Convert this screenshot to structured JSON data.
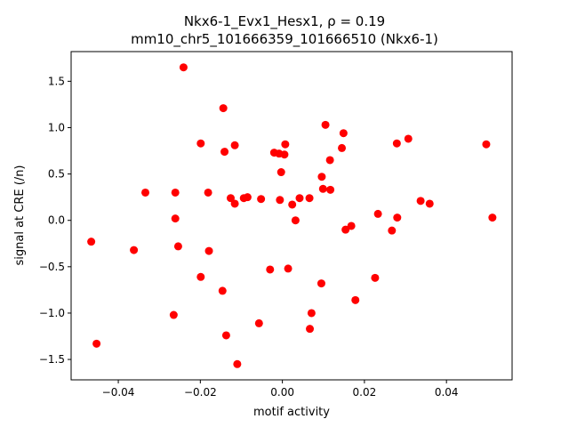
{
  "chart_data": {
    "type": "scatter",
    "title_line1": "Nkx6-1_Evx1_Hesx1, ρ = 0.19",
    "title_line2": "mm10_chr5_101666359_101666510 (Nkx6-1)",
    "xlabel": "motif activity",
    "ylabel": "signal at CRE (/n)",
    "xlim": [
      -0.0515,
      0.056
    ],
    "ylim": [
      -1.72,
      1.82
    ],
    "xticks": [
      -0.04,
      -0.02,
      0.0,
      0.02,
      0.04
    ],
    "xtick_labels": [
      "−0.04",
      "−0.02",
      "0.00",
      "0.02",
      "0.04"
    ],
    "yticks": [
      -1.5,
      -1.0,
      -0.5,
      0.0,
      0.5,
      1.0,
      1.5
    ],
    "ytick_labels": [
      "−1.5",
      "−1.0",
      "−0.5",
      "0.0",
      "0.5",
      "1.0",
      "1.5"
    ],
    "grid": false,
    "marker_color": "#ff0000",
    "points": [
      {
        "x": -0.0466,
        "y": -0.23
      },
      {
        "x": -0.0453,
        "y": -1.33
      },
      {
        "x": -0.0362,
        "y": -0.32
      },
      {
        "x": -0.0334,
        "y": 0.3
      },
      {
        "x": -0.0265,
        "y": -1.02
      },
      {
        "x": -0.0261,
        "y": 0.3
      },
      {
        "x": -0.0261,
        "y": 0.02
      },
      {
        "x": -0.0254,
        "y": -0.28
      },
      {
        "x": -0.0241,
        "y": 1.65
      },
      {
        "x": -0.0199,
        "y": 0.83
      },
      {
        "x": -0.0199,
        "y": -0.61
      },
      {
        "x": -0.0181,
        "y": 0.3
      },
      {
        "x": -0.0179,
        "y": -0.33
      },
      {
        "x": -0.0146,
        "y": -0.76
      },
      {
        "x": -0.0144,
        "y": 1.21
      },
      {
        "x": -0.0141,
        "y": 0.74
      },
      {
        "x": -0.0137,
        "y": -1.24
      },
      {
        "x": -0.0126,
        "y": 0.24
      },
      {
        "x": -0.0116,
        "y": 0.81
      },
      {
        "x": -0.0116,
        "y": 0.18
      },
      {
        "x": -0.011,
        "y": -1.55
      },
      {
        "x": -0.0094,
        "y": 0.24
      },
      {
        "x": -0.0085,
        "y": 0.25
      },
      {
        "x": -0.0057,
        "y": -1.11
      },
      {
        "x": -0.0052,
        "y": 0.23
      },
      {
        "x": -0.003,
        "y": -0.53
      },
      {
        "x": -0.002,
        "y": 0.73
      },
      {
        "x": -0.0008,
        "y": 0.72
      },
      {
        "x": -0.0006,
        "y": 0.22
      },
      {
        "x": -0.0003,
        "y": 0.52
      },
      {
        "x": 0.0005,
        "y": 0.71
      },
      {
        "x": 0.0007,
        "y": 0.82
      },
      {
        "x": 0.0014,
        "y": -0.52
      },
      {
        "x": 0.0024,
        "y": 0.17
      },
      {
        "x": 0.0032,
        "y": 0.0
      },
      {
        "x": 0.0042,
        "y": 0.24
      },
      {
        "x": 0.0066,
        "y": 0.24
      },
      {
        "x": 0.0067,
        "y": -1.17
      },
      {
        "x": 0.0071,
        "y": -1.0
      },
      {
        "x": 0.0095,
        "y": -0.68
      },
      {
        "x": 0.0096,
        "y": 0.47
      },
      {
        "x": 0.0099,
        "y": 0.34
      },
      {
        "x": 0.0105,
        "y": 1.03
      },
      {
        "x": 0.0116,
        "y": 0.65
      },
      {
        "x": 0.0117,
        "y": 0.33
      },
      {
        "x": 0.0145,
        "y": 0.78
      },
      {
        "x": 0.0149,
        "y": 0.94
      },
      {
        "x": 0.0154,
        "y": -0.1
      },
      {
        "x": 0.0168,
        "y": -0.06
      },
      {
        "x": 0.0178,
        "y": -0.86
      },
      {
        "x": 0.0226,
        "y": -0.62
      },
      {
        "x": 0.0233,
        "y": 0.07
      },
      {
        "x": 0.0267,
        "y": -0.11
      },
      {
        "x": 0.0279,
        "y": 0.83
      },
      {
        "x": 0.028,
        "y": 0.03
      },
      {
        "x": 0.0307,
        "y": 0.88
      },
      {
        "x": 0.0337,
        "y": 0.21
      },
      {
        "x": 0.0359,
        "y": 0.18
      },
      {
        "x": 0.0497,
        "y": 0.82
      },
      {
        "x": 0.0512,
        "y": 0.03
      }
    ]
  }
}
